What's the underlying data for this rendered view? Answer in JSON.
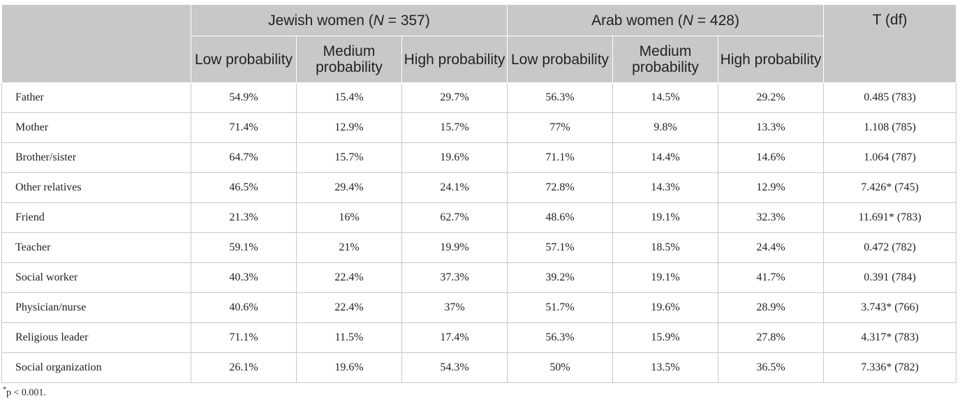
{
  "table": {
    "groups": [
      {
        "label_prefix": "Jewish women (",
        "n_symbol": "N",
        "label_suffix": " = 357)"
      },
      {
        "label_prefix": "Arab women (",
        "n_symbol": "N",
        "label_suffix": " = 428)"
      }
    ],
    "stat_header": "T (df)",
    "subheaders": [
      "Low probability",
      "Medium probability",
      "High probability",
      "Low probability",
      "Medium probability",
      "High probability"
    ],
    "rows": [
      {
        "label": "Father",
        "values": [
          "54.9%",
          "15.4%",
          "29.7%",
          "56.3%",
          "14.5%",
          "29.2%"
        ],
        "t": "0.485 (783)"
      },
      {
        "label": "Mother",
        "values": [
          "71.4%",
          "12.9%",
          "15.7%",
          "77%",
          "9.8%",
          "13.3%"
        ],
        "t": "1.108 (785)"
      },
      {
        "label": "Brother/sister",
        "values": [
          "64.7%",
          "15.7%",
          "19.6%",
          "71.1%",
          "14.4%",
          "14.6%"
        ],
        "t": "1.064 (787)"
      },
      {
        "label": "Other relatives",
        "values": [
          "46.5%",
          "29.4%",
          "24.1%",
          "72.8%",
          "14.3%",
          "12.9%"
        ],
        "t": "7.426* (745)"
      },
      {
        "label": "Friend",
        "values": [
          "21.3%",
          "16%",
          "62.7%",
          "48.6%",
          "19.1%",
          "32.3%"
        ],
        "t": "11.691* (783)"
      },
      {
        "label": "Teacher",
        "values": [
          "59.1%",
          "21%",
          "19.9%",
          "57.1%",
          "18.5%",
          "24.4%"
        ],
        "t": "0.472 (782)"
      },
      {
        "label": "Social worker",
        "values": [
          "40.3%",
          "22.4%",
          "37.3%",
          "39.2%",
          "19.1%",
          "41.7%"
        ],
        "t": "0.391 (784)"
      },
      {
        "label": "Physician/nurse",
        "values": [
          "40.6%",
          "22.4%",
          "37%",
          "51.7%",
          "19.6%",
          "28.9%"
        ],
        "t": "3.743* (766)"
      },
      {
        "label": "Religious leader",
        "values": [
          "71.1%",
          "11.5%",
          "17.4%",
          "56.3%",
          "15.9%",
          "27.8%"
        ],
        "t": "4.317* (783)"
      },
      {
        "label": "Social organization",
        "values": [
          "26.1%",
          "19.6%",
          "54.3%",
          "50%",
          "13.5%",
          "36.5%"
        ],
        "t": "7.336* (782)"
      }
    ]
  },
  "footnote": {
    "marker": "*",
    "text": "p < 0.001."
  },
  "colors": {
    "header_background": "#c8c8c8",
    "border": "#c8c8c8",
    "text": "#222222"
  }
}
